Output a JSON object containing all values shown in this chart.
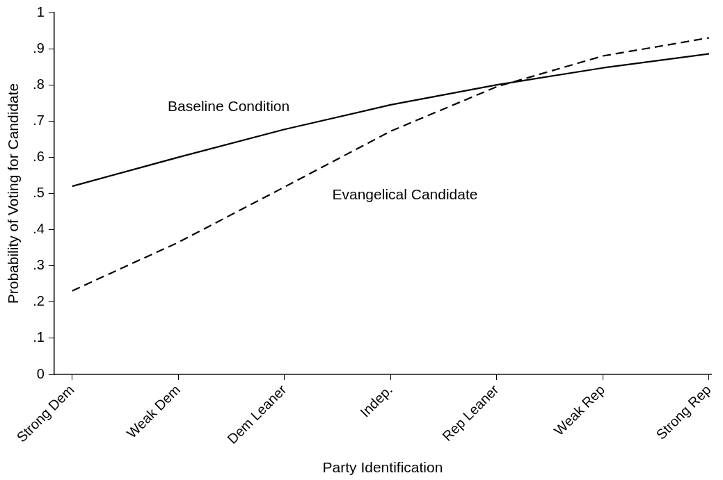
{
  "chart_data": {
    "type": "line",
    "xlabel": "Party Identification",
    "ylabel": "Probability of Voting for Candidate",
    "categories": [
      "Strong Dem",
      "Weak Dem",
      "Dem Leaner",
      "Indep.",
      "Rep Leaner",
      "Weak Rep",
      "Strong Rep"
    ],
    "series": [
      {
        "name": "Baseline Condition",
        "color": "#000000",
        "line_style": "solid",
        "values": [
          0.52,
          0.6,
          0.677,
          0.745,
          0.8,
          0.847,
          0.886
        ]
      },
      {
        "name": "Evangelical Candidate",
        "color": "#000000",
        "line_style": "dashed",
        "values": [
          0.231,
          0.365,
          0.518,
          0.672,
          0.795,
          0.88,
          0.93
        ]
      }
    ],
    "ylim": [
      0,
      1
    ],
    "yticks": [
      {
        "value": 0,
        "label": "0"
      },
      {
        "value": 0.1,
        "label": ".1"
      },
      {
        "value": 0.2,
        "label": ".2"
      },
      {
        "value": 0.3,
        "label": ".3"
      },
      {
        "value": 0.4,
        "label": ".4"
      },
      {
        "value": 0.5,
        "label": ".5"
      },
      {
        "value": 0.6,
        "label": ".6"
      },
      {
        "value": 0.7,
        "label": ".7"
      },
      {
        "value": 0.8,
        "label": ".8"
      },
      {
        "value": 0.9,
        "label": ".9"
      },
      {
        "value": 1,
        "label": "1"
      }
    ],
    "grid": false,
    "legend": false,
    "marker": "none"
  }
}
